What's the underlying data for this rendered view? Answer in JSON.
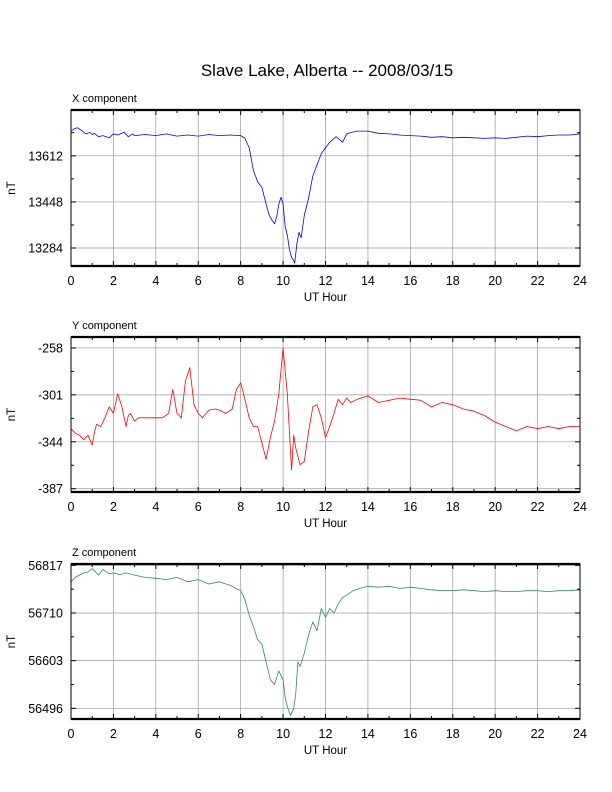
{
  "page": {
    "title": "Slave Lake, Alberta -- 2008/03/15"
  },
  "chart_data": [
    {
      "type": "line",
      "panel_label": "X component",
      "xlabel": "UT Hour",
      "ylabel": "nT",
      "xlim": [
        0,
        24
      ],
      "x_ticks": [
        "0",
        "2",
        "4",
        "6",
        "8",
        "10",
        "12",
        "14",
        "16",
        "18",
        "20",
        "22",
        "24"
      ],
      "ylim": [
        13220,
        13775
      ],
      "y_ticks": [
        "13612",
        "13448",
        "13284"
      ],
      "y_tick_values": [
        13612,
        13448,
        13284
      ],
      "grid": true,
      "series": [
        {
          "color": "#0000ff",
          "x": [
            0,
            0.15,
            0.3,
            0.5,
            0.7,
            0.9,
            1.0,
            1.1,
            1.3,
            1.5,
            1.8,
            2.0,
            2.2,
            2.5,
            2.7,
            2.9,
            3.0,
            3.5,
            4.0,
            4.5,
            5.0,
            5.5,
            6.0,
            6.5,
            7.0,
            7.5,
            8.0,
            8.2,
            8.4,
            8.5,
            8.6,
            8.8,
            9.0,
            9.1,
            9.2,
            9.35,
            9.5,
            9.6,
            9.7,
            9.8,
            9.9,
            10.0,
            10.1,
            10.2,
            10.3,
            10.4,
            10.5,
            10.55,
            10.65,
            10.75,
            10.85,
            11.0,
            11.2,
            11.4,
            11.6,
            11.8,
            12.0,
            12.2,
            12.5,
            12.8,
            13.0,
            13.2,
            13.5,
            14.0,
            14.5,
            15.0,
            15.5,
            16.0,
            16.5,
            17.0,
            17.5,
            18.0,
            18.5,
            19.0,
            19.5,
            20.0,
            20.5,
            21.0,
            21.5,
            22.0,
            22.5,
            23.0,
            23.5,
            24.0
          ],
          "y": [
            13700,
            13708,
            13712,
            13702,
            13690,
            13695,
            13688,
            13692,
            13680,
            13684,
            13676,
            13690,
            13686,
            13696,
            13680,
            13690,
            13684,
            13688,
            13684,
            13690,
            13682,
            13686,
            13682,
            13688,
            13684,
            13686,
            13684,
            13675,
            13640,
            13600,
            13560,
            13520,
            13500,
            13470,
            13440,
            13400,
            13380,
            13370,
            13395,
            13440,
            13465,
            13440,
            13360,
            13330,
            13280,
            13250,
            13240,
            13230,
            13300,
            13340,
            13320,
            13400,
            13460,
            13540,
            13580,
            13620,
            13640,
            13660,
            13680,
            13660,
            13690,
            13695,
            13700,
            13700,
            13692,
            13690,
            13686,
            13684,
            13682,
            13678,
            13680,
            13676,
            13678,
            13676,
            13674,
            13676,
            13674,
            13678,
            13682,
            13680,
            13684,
            13686,
            13686,
            13690
          ]
        }
      ]
    },
    {
      "type": "line",
      "panel_label": "Y component",
      "xlabel": "UT Hour",
      "ylabel": "nT",
      "xlim": [
        0,
        24
      ],
      "x_ticks": [
        "0",
        "2",
        "4",
        "6",
        "8",
        "10",
        "12",
        "14",
        "16",
        "18",
        "20",
        "22",
        "24"
      ],
      "ylim": [
        -390,
        -248
      ],
      "y_ticks": [
        "-258",
        "-301",
        "-344",
        "-387"
      ],
      "y_tick_values": [
        -258,
        -301,
        -344,
        -387
      ],
      "grid": true,
      "series": [
        {
          "color": "#ff0000",
          "x": [
            0,
            0.2,
            0.4,
            0.6,
            0.8,
            1.0,
            1.1,
            1.2,
            1.4,
            1.6,
            1.8,
            2.0,
            2.2,
            2.4,
            2.6,
            2.7,
            2.8,
            3.0,
            3.2,
            3.5,
            4.0,
            4.3,
            4.6,
            4.8,
            5.0,
            5.2,
            5.4,
            5.6,
            5.8,
            6.0,
            6.2,
            6.5,
            6.8,
            7.0,
            7.3,
            7.6,
            7.8,
            8.0,
            8.2,
            8.4,
            8.6,
            8.8,
            9.0,
            9.2,
            9.4,
            9.6,
            9.8,
            10.0,
            10.2,
            10.4,
            10.5,
            10.6,
            10.8,
            11.0,
            11.2,
            11.4,
            11.6,
            11.8,
            12.0,
            12.2,
            12.4,
            12.6,
            12.8,
            13.0,
            13.2,
            13.5,
            14.0,
            14.5,
            15.0,
            15.5,
            16.0,
            16.5,
            17.0,
            17.5,
            18.0,
            18.5,
            19.0,
            19.5,
            20.0,
            20.5,
            21.0,
            21.5,
            22.0,
            22.5,
            23.0,
            23.5,
            24.0
          ],
          "y": [
            -332,
            -336,
            -338,
            -342,
            -338,
            -347,
            -336,
            -328,
            -330,
            -322,
            -312,
            -318,
            -300,
            -312,
            -330,
            -320,
            -318,
            -325,
            -322,
            -322,
            -322,
            -322,
            -318,
            -296,
            -318,
            -322,
            -288,
            -276,
            -310,
            -318,
            -322,
            -315,
            -314,
            -315,
            -318,
            -314,
            -296,
            -290,
            -305,
            -322,
            -330,
            -330,
            -345,
            -360,
            -340,
            -325,
            -300,
            -258,
            -300,
            -370,
            -338,
            -350,
            -365,
            -362,
            -335,
            -312,
            -310,
            -322,
            -340,
            -330,
            -318,
            -305,
            -310,
            -304,
            -308,
            -305,
            -302,
            -308,
            -306,
            -304,
            -305,
            -306,
            -312,
            -308,
            -310,
            -314,
            -316,
            -320,
            -326,
            -330,
            -334,
            -330,
            -332,
            -330,
            -332,
            -330,
            -330
          ]
        }
      ]
    },
    {
      "type": "line",
      "panel_label": "Z component",
      "xlabel": "UT Hour",
      "ylabel": "nT",
      "xlim": [
        0,
        24
      ],
      "x_ticks": [
        "0",
        "2",
        "4",
        "6",
        "8",
        "10",
        "12",
        "14",
        "16",
        "18",
        "20",
        "22",
        "24"
      ],
      "ylim": [
        56472,
        56820
      ],
      "y_ticks": [
        "56817",
        "56710",
        "56603",
        "56496"
      ],
      "y_tick_values": [
        56817,
        56710,
        56603,
        56496
      ],
      "grid": true,
      "series": [
        {
          "color": "#2e8b57",
          "x": [
            0,
            0.2,
            0.4,
            0.6,
            0.8,
            1.0,
            1.1,
            1.3,
            1.5,
            1.8,
            2.0,
            2.3,
            2.6,
            3.0,
            3.5,
            4.0,
            4.5,
            5.0,
            5.5,
            6.0,
            6.5,
            7.0,
            7.5,
            8.0,
            8.2,
            8.4,
            8.6,
            8.8,
            9.0,
            9.2,
            9.4,
            9.6,
            9.8,
            10.0,
            10.1,
            10.2,
            10.35,
            10.5,
            10.6,
            10.7,
            10.8,
            11.0,
            11.2,
            11.4,
            11.6,
            11.8,
            12.0,
            12.2,
            12.4,
            12.6,
            12.8,
            13.0,
            13.3,
            13.6,
            14.0,
            14.5,
            15.0,
            15.5,
            16.0,
            16.5,
            17.0,
            17.5,
            18.0,
            18.5,
            19.0,
            19.5,
            20.0,
            20.5,
            21.0,
            21.5,
            22.0,
            22.5,
            23.0,
            23.5,
            24.0
          ],
          "y": [
            56780,
            56790,
            56795,
            56800,
            56802,
            56810,
            56805,
            56795,
            56808,
            56798,
            56800,
            56796,
            56800,
            56795,
            56790,
            56788,
            56785,
            56790,
            56780,
            56785,
            56775,
            56780,
            56772,
            56760,
            56740,
            56705,
            56680,
            56650,
            56640,
            56600,
            56560,
            56550,
            56580,
            56560,
            56520,
            56500,
            56480,
            56495,
            56530,
            56600,
            56590,
            56620,
            56660,
            56690,
            56670,
            56720,
            56700,
            56720,
            56710,
            56730,
            56745,
            56750,
            56760,
            56765,
            56770,
            56768,
            56770,
            56765,
            56768,
            56765,
            56762,
            56760,
            56760,
            56762,
            56760,
            56758,
            56760,
            56758,
            56758,
            56760,
            56760,
            56758,
            56760,
            56760,
            56762
          ]
        }
      ]
    }
  ]
}
